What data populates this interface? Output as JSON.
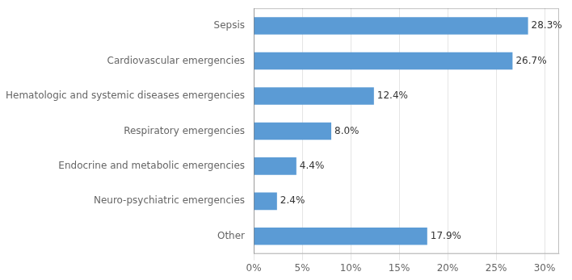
{
  "chart_data": {
    "type": "bar",
    "orientation": "horizontal",
    "categories": [
      "Other",
      "Neuro-psychiatric emergencies",
      "Endocrine and metabolic emergencies",
      "Respiratory emergencies",
      "Hematologic and systemic diseases emergencies",
      "Cardiovascular emergencies",
      "Sepsis"
    ],
    "values": [
      17.9,
      2.4,
      4.4,
      8.0,
      12.4,
      26.7,
      28.3
    ],
    "value_labels": [
      "17.9%",
      "2.4%",
      "4.4%",
      "8.0%",
      "12.4%",
      "26.7%",
      "28.3%"
    ],
    "data_labels": true,
    "color": "#5b9bd5",
    "xlim": [
      0,
      31.5
    ],
    "xticks": [
      {
        "value": 0,
        "label": "0%"
      },
      {
        "value": 5,
        "label": "5%"
      },
      {
        "value": 10,
        "label": "10%"
      },
      {
        "value": 15,
        "label": "15%"
      },
      {
        "value": 20,
        "label": "20%"
      },
      {
        "value": 25,
        "label": "25%"
      },
      {
        "value": 30,
        "label": "30%"
      }
    ],
    "grid": true
  }
}
